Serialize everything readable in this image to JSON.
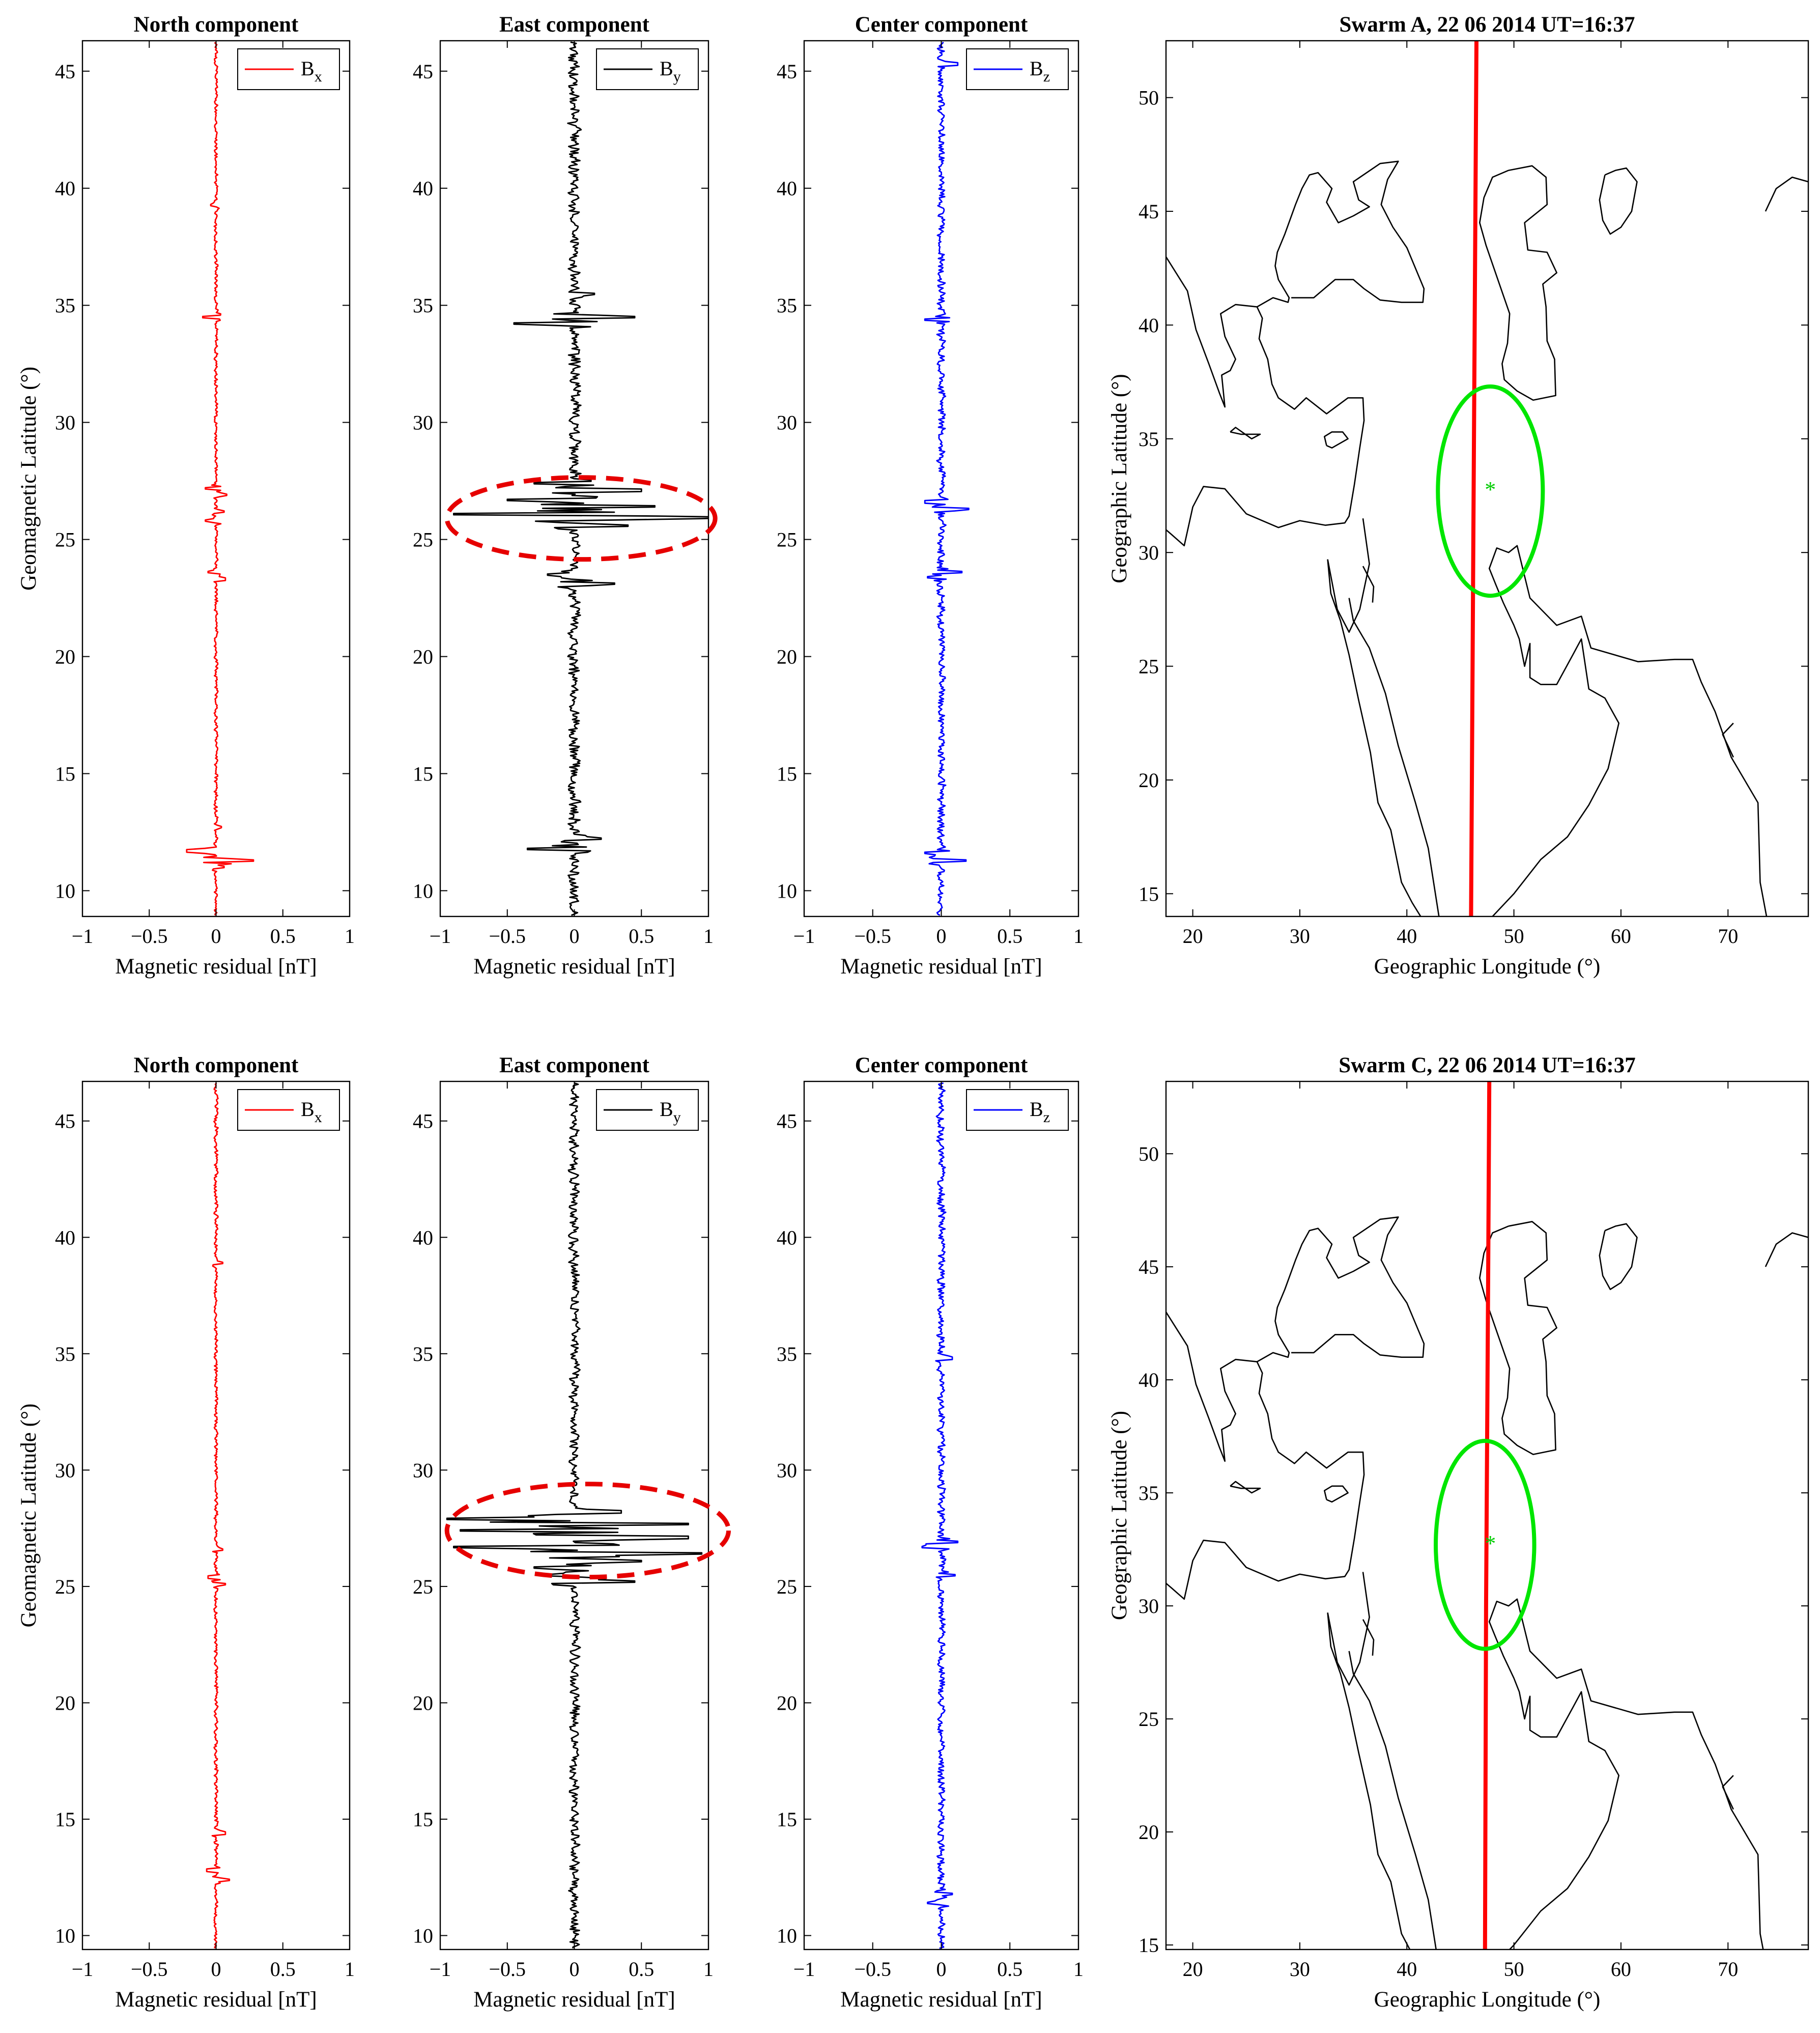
{
  "figure_description_free": true,
  "chart_data": [
    {
      "type": "line",
      "row": 0,
      "col": 0,
      "title": "North component",
      "xlabel": "Magnetic residual [nT]",
      "ylabel": "Geomagnetic Latitude (°)",
      "xlim": [
        -1,
        1
      ],
      "ylim": [
        8.9,
        46.3
      ],
      "xticks": [
        -1,
        -0.5,
        0,
        0.5,
        1
      ],
      "xtick_labels": [
        "−1",
        "−0.5",
        "0",
        "0.5",
        "1"
      ],
      "yticks": [
        10,
        15,
        20,
        25,
        30,
        35,
        40,
        45
      ],
      "legend": {
        "base": "B",
        "sub": "x",
        "placement": "top-right"
      },
      "color": "#ff0000",
      "seed": 11,
      "noise": 0.02,
      "spikes": [
        [
          11.3,
          0.28
        ],
        [
          11.7,
          -0.22
        ],
        [
          11.0,
          0.06
        ],
        [
          12.7,
          0.04
        ],
        [
          23.3,
          0.07
        ],
        [
          23.6,
          -0.06
        ],
        [
          25.8,
          -0.08
        ],
        [
          26.2,
          0.06
        ],
        [
          26.9,
          0.08
        ],
        [
          27.2,
          -0.08
        ],
        [
          34.5,
          -0.1
        ],
        [
          39.3,
          -0.04
        ]
      ],
      "series": [
        {
          "name": "Bx"
        }
      ]
    },
    {
      "type": "line",
      "row": 0,
      "col": 1,
      "title": "East component",
      "xlabel": "Magnetic residual [nT]",
      "ylabel": "",
      "xlim": [
        -1,
        1
      ],
      "ylim": [
        8.9,
        46.3
      ],
      "xticks": [
        -1,
        -0.5,
        0,
        0.5,
        1
      ],
      "xtick_labels": [
        "−1",
        "−0.5",
        "0",
        "0.5",
        "1"
      ],
      "yticks": [
        10,
        15,
        20,
        25,
        30,
        35,
        40,
        45
      ],
      "legend": {
        "base": "B",
        "sub": "y",
        "placement": "top-right"
      },
      "color": "#000000",
      "seed": 23,
      "noise": 0.07,
      "spikes": [
        [
          25.9,
          0.95
        ],
        [
          26.1,
          -0.9
        ],
        [
          26.4,
          0.6
        ],
        [
          26.7,
          -0.5
        ],
        [
          27.1,
          0.5
        ],
        [
          27.4,
          -0.3
        ],
        [
          25.6,
          0.4
        ],
        [
          23.1,
          0.3
        ],
        [
          23.5,
          -0.2
        ],
        [
          34.2,
          -0.45
        ],
        [
          34.5,
          0.45
        ],
        [
          11.8,
          -0.35
        ],
        [
          12.2,
          0.2
        ],
        [
          35.5,
          0.15
        ]
      ],
      "series": [
        {
          "name": "By"
        }
      ],
      "highlight": {
        "type": "ellipse",
        "center_x": 0.05,
        "center_y": 25.9,
        "rx": 1.0,
        "ry": 1.75,
        "color": "#e60000"
      }
    },
    {
      "type": "line",
      "row": 0,
      "col": 2,
      "title": "Center component",
      "xlabel": "Magnetic residual [nT]",
      "ylabel": "",
      "xlim": [
        -1,
        1
      ],
      "ylim": [
        8.9,
        46.3
      ],
      "xticks": [
        -1,
        -0.5,
        0,
        0.5,
        1
      ],
      "xtick_labels": [
        "−1",
        "−0.5",
        "0",
        "0.5",
        "1"
      ],
      "yticks": [
        10,
        15,
        20,
        25,
        30,
        35,
        40,
        45
      ],
      "legend": {
        "base": "B",
        "sub": "z",
        "placement": "top-right"
      },
      "color": "#0000ff",
      "seed": 37,
      "noise": 0.045,
      "spikes": [
        [
          26.3,
          0.2
        ],
        [
          26.6,
          -0.12
        ],
        [
          23.6,
          0.15
        ],
        [
          23.4,
          -0.1
        ],
        [
          34.4,
          -0.12
        ],
        [
          11.3,
          0.18
        ],
        [
          11.6,
          -0.12
        ],
        [
          45.3,
          0.12
        ]
      ],
      "series": [
        {
          "name": "Bz"
        }
      ]
    },
    {
      "type": "map",
      "row": 0,
      "col": 3,
      "title": "Swarm A, 22 06 2014 UT=16:37",
      "xlabel": "Geographic Longitude (°)",
      "ylabel": "Geographic  Latitude (°)",
      "xlim": [
        17.5,
        77.5
      ],
      "ylim": [
        14,
        52.5
      ],
      "xticks": [
        20,
        30,
        40,
        50,
        60,
        70
      ],
      "yticks": [
        15,
        20,
        25,
        30,
        35,
        40,
        45,
        50
      ],
      "track": {
        "color": "#ff0000",
        "points": [
          [
            46.0,
            14.0
          ],
          [
            46.2,
            30.0
          ],
          [
            46.4,
            45.0
          ],
          [
            46.5,
            52.5
          ]
        ]
      },
      "epicenter": {
        "lon": 47.8,
        "lat": 32.8,
        "marker": "*",
        "color": "#00cc00"
      },
      "circle": {
        "lon": 47.8,
        "lat": 32.7,
        "rx": 4.9,
        "ry": 4.6,
        "color": "#00e600"
      }
    },
    {
      "type": "line",
      "row": 1,
      "col": 0,
      "title": "North component",
      "xlabel": "Magnetic residual [nT]",
      "ylabel": "Geomagnetic Latitude (°)",
      "xlim": [
        -1,
        1
      ],
      "ylim": [
        9.4,
        46.7
      ],
      "xticks": [
        -1,
        -0.5,
        0,
        0.5,
        1
      ],
      "xtick_labels": [
        "−1",
        "−0.5",
        "0",
        "0.5",
        "1"
      ],
      "yticks": [
        10,
        15,
        20,
        25,
        30,
        35,
        40,
        45
      ],
      "legend": {
        "base": "B",
        "sub": "x",
        "placement": "top-right"
      },
      "color": "#ff0000",
      "seed": 53,
      "noise": 0.022,
      "spikes": [
        [
          12.4,
          0.1
        ],
        [
          12.8,
          -0.07
        ],
        [
          14.4,
          0.07
        ],
        [
          25.1,
          0.07
        ],
        [
          25.4,
          -0.06
        ],
        [
          26.6,
          0.05
        ],
        [
          38.9,
          0.05
        ]
      ],
      "series": [
        {
          "name": "Bx"
        }
      ]
    },
    {
      "type": "line",
      "row": 1,
      "col": 1,
      "title": "East component",
      "xlabel": "Magnetic residual [nT]",
      "ylabel": "",
      "xlim": [
        -1,
        1
      ],
      "ylim": [
        9.4,
        46.7
      ],
      "xticks": [
        -1,
        -0.5,
        0,
        0.5,
        1
      ],
      "xtick_labels": [
        "−1",
        "−0.5",
        "0",
        "0.5",
        "1"
      ],
      "yticks": [
        10,
        15,
        20,
        25,
        30,
        35,
        40,
        45
      ],
      "legend": {
        "base": "B",
        "sub": "y",
        "placement": "top-right"
      },
      "color": "#000000",
      "seed": 71,
      "noise": 0.06,
      "spikes": [
        [
          26.4,
          0.95
        ],
        [
          26.7,
          -0.9
        ],
        [
          27.1,
          0.85
        ],
        [
          27.4,
          -0.85
        ],
        [
          27.7,
          0.85
        ],
        [
          27.9,
          -0.95
        ],
        [
          26.1,
          0.5
        ],
        [
          25.8,
          -0.3
        ],
        [
          25.2,
          0.45
        ],
        [
          25.5,
          -0.2
        ],
        [
          28.2,
          0.35
        ]
      ],
      "series": [
        {
          "name": "By"
        }
      ],
      "highlight": {
        "type": "ellipse",
        "center_x": 0.1,
        "center_y": 27.4,
        "rx": 1.05,
        "ry": 2.0,
        "color": "#e60000"
      }
    },
    {
      "type": "line",
      "row": 1,
      "col": 2,
      "title": "Center component",
      "xlabel": "Magnetic residual [nT]",
      "ylabel": "",
      "xlim": [
        -1,
        1
      ],
      "ylim": [
        9.4,
        46.7
      ],
      "xticks": [
        -1,
        -0.5,
        0,
        0.5,
        1
      ],
      "xtick_labels": [
        "−1",
        "−0.5",
        "0",
        "0.5",
        "1"
      ],
      "yticks": [
        10,
        15,
        20,
        25,
        30,
        35,
        40,
        45
      ],
      "legend": {
        "base": "B",
        "sub": "z",
        "placement": "top-right"
      },
      "color": "#0000ff",
      "seed": 89,
      "noise": 0.045,
      "spikes": [
        [
          26.9,
          0.12
        ],
        [
          26.7,
          -0.14
        ],
        [
          25.5,
          0.1
        ],
        [
          11.4,
          -0.1
        ],
        [
          11.8,
          0.08
        ],
        [
          34.8,
          0.08
        ]
      ],
      "series": [
        {
          "name": "Bz"
        }
      ]
    },
    {
      "type": "map",
      "row": 1,
      "col": 3,
      "title": "Swarm C, 22 06 2014 UT=16:37",
      "xlabel": "Geographic Longitude (°)",
      "ylabel": "Geographic Latitude (°)",
      "xlim": [
        17.5,
        77.5
      ],
      "ylim": [
        14.8,
        53.2
      ],
      "xticks": [
        20,
        30,
        40,
        50,
        60,
        70
      ],
      "yticks": [
        15,
        20,
        25,
        30,
        35,
        40,
        45,
        50
      ],
      "track": {
        "color": "#ff0000",
        "points": [
          [
            47.3,
            14.8
          ],
          [
            47.4,
            30.0
          ],
          [
            47.6,
            45.0
          ],
          [
            47.7,
            53.2
          ]
        ]
      },
      "epicenter": {
        "lon": 47.8,
        "lat": 32.8,
        "marker": "*",
        "color": "#00cc00"
      },
      "circle": {
        "lon": 47.3,
        "lat": 32.7,
        "rx": 4.6,
        "ry": 4.6,
        "color": "#00e600"
      }
    }
  ],
  "coastlines": [
    [
      [
        17.5,
        43.0
      ],
      [
        19.5,
        41.5
      ],
      [
        20.3,
        39.8
      ],
      [
        21.5,
        38.3
      ],
      [
        22.5,
        37.0
      ],
      [
        23.0,
        36.4
      ],
      [
        22.7,
        37.8
      ],
      [
        23.5,
        38.0
      ],
      [
        24.0,
        38.5
      ],
      [
        23.0,
        39.5
      ],
      [
        22.6,
        40.5
      ],
      [
        24.0,
        40.9
      ],
      [
        26.0,
        40.8
      ],
      [
        26.5,
        40.3
      ],
      [
        26.2,
        39.4
      ],
      [
        27.0,
        38.5
      ],
      [
        27.4,
        37.4
      ],
      [
        28.0,
        36.8
      ],
      [
        29.5,
        36.3
      ],
      [
        30.6,
        36.8
      ],
      [
        32.5,
        36.1
      ],
      [
        34.5,
        36.8
      ],
      [
        35.9,
        36.8
      ],
      [
        36.0,
        35.8
      ],
      [
        35.6,
        34.6
      ],
      [
        35.1,
        33.0
      ],
      [
        34.6,
        31.6
      ],
      [
        34.2,
        31.3
      ],
      [
        32.4,
        31.2
      ],
      [
        30.0,
        31.4
      ],
      [
        28.0,
        31.1
      ],
      [
        25.0,
        31.7
      ],
      [
        23.0,
        32.8
      ],
      [
        21.0,
        32.9
      ],
      [
        20.0,
        32.0
      ],
      [
        19.2,
        30.3
      ],
      [
        18.0,
        30.8
      ],
      [
        17.5,
        31.0
      ]
    ],
    [
      [
        26.0,
        40.8
      ],
      [
        27.5,
        41.2
      ],
      [
        28.9,
        41.0
      ],
      [
        29.0,
        41.2
      ],
      [
        28.0,
        42.0
      ],
      [
        27.7,
        42.6
      ],
      [
        27.9,
        43.2
      ],
      [
        28.6,
        44.0
      ],
      [
        29.6,
        45.3
      ],
      [
        30.2,
        46.0
      ],
      [
        30.9,
        46.6
      ],
      [
        31.7,
        46.7
      ],
      [
        33.0,
        46.0
      ],
      [
        32.5,
        45.4
      ],
      [
        33.6,
        44.5
      ],
      [
        35.0,
        44.8
      ],
      [
        36.5,
        45.2
      ],
      [
        35.5,
        45.5
      ],
      [
        35.0,
        46.3
      ],
      [
        37.5,
        47.1
      ],
      [
        39.2,
        47.2
      ],
      [
        38.2,
        46.4
      ],
      [
        37.6,
        45.3
      ],
      [
        38.7,
        44.3
      ],
      [
        40.0,
        43.4
      ],
      [
        41.6,
        41.6
      ],
      [
        41.5,
        41.0
      ],
      [
        39.5,
        41.0
      ],
      [
        37.5,
        41.1
      ],
      [
        36.0,
        41.6
      ],
      [
        35.0,
        42.0
      ],
      [
        33.3,
        42.0
      ],
      [
        31.3,
        41.2
      ],
      [
        29.2,
        41.2
      ]
    ],
    [
      [
        49.5,
        46.8
      ],
      [
        48.0,
        46.5
      ],
      [
        47.2,
        45.6
      ],
      [
        46.8,
        44.5
      ],
      [
        47.4,
        43.5
      ],
      [
        48.5,
        42.0
      ],
      [
        49.6,
        40.5
      ],
      [
        49.4,
        39.2
      ],
      [
        48.9,
        38.3
      ],
      [
        49.1,
        37.6
      ],
      [
        50.3,
        37.1
      ],
      [
        51.8,
        36.7
      ],
      [
        53.9,
        36.9
      ],
      [
        53.8,
        38.5
      ],
      [
        53.1,
        39.3
      ],
      [
        53.0,
        40.8
      ],
      [
        52.7,
        41.8
      ],
      [
        54.0,
        42.3
      ],
      [
        53.1,
        43.2
      ],
      [
        51.3,
        43.3
      ],
      [
        51.0,
        44.5
      ],
      [
        53.1,
        45.3
      ],
      [
        53.0,
        46.5
      ],
      [
        51.7,
        47.0
      ],
      [
        49.5,
        46.8
      ]
    ],
    [
      [
        58.5,
        46.6
      ],
      [
        58.0,
        45.5
      ],
      [
        58.3,
        44.6
      ],
      [
        59.0,
        44.0
      ],
      [
        60.0,
        44.3
      ],
      [
        61.0,
        45.0
      ],
      [
        61.5,
        46.3
      ],
      [
        60.5,
        46.9
      ],
      [
        59.5,
        46.8
      ],
      [
        58.5,
        46.6
      ]
    ],
    [
      [
        32.5,
        34.7
      ],
      [
        33.0,
        34.6
      ],
      [
        34.5,
        35.0
      ],
      [
        34.0,
        35.3
      ],
      [
        33.0,
        35.3
      ],
      [
        32.3,
        35.1
      ],
      [
        32.5,
        34.7
      ]
    ],
    [
      [
        23.5,
        35.3
      ],
      [
        24.5,
        35.2
      ],
      [
        26.3,
        35.2
      ],
      [
        25.5,
        35.0
      ],
      [
        24.0,
        35.5
      ],
      [
        23.5,
        35.3
      ]
    ],
    [
      [
        35.9,
        31.5
      ],
      [
        36.5,
        29.5
      ],
      [
        35.6,
        27.5
      ],
      [
        34.6,
        26.5
      ],
      [
        33.5,
        27.5
      ],
      [
        32.6,
        29.7
      ]
    ],
    [
      [
        35.9,
        29.4
      ],
      [
        36.9,
        28.5
      ],
      [
        36.8,
        27.8
      ]
    ],
    [
      [
        32.6,
        29.7
      ],
      [
        32.9,
        28.2
      ],
      [
        33.8,
        27.0
      ],
      [
        34.6,
        25.5
      ],
      [
        35.5,
        23.5
      ],
      [
        36.6,
        21.2
      ],
      [
        37.3,
        19.0
      ],
      [
        38.5,
        17.8
      ],
      [
        39.5,
        15.5
      ],
      [
        40.5,
        14.6
      ],
      [
        43.0,
        12.7
      ]
    ],
    [
      [
        34.6,
        28.0
      ],
      [
        35.0,
        27.0
      ],
      [
        36.5,
        25.8
      ],
      [
        38.0,
        23.8
      ],
      [
        39.2,
        21.5
      ],
      [
        40.8,
        19.0
      ],
      [
        42.0,
        17.0
      ],
      [
        43.0,
        14.0
      ],
      [
        43.5,
        12.8
      ]
    ],
    [
      [
        45.5,
        13.0
      ],
      [
        48.0,
        14.0
      ],
      [
        50.0,
        15.0
      ],
      [
        52.5,
        16.5
      ],
      [
        55.0,
        17.5
      ],
      [
        57.0,
        18.9
      ],
      [
        58.8,
        20.5
      ],
      [
        59.8,
        22.5
      ],
      [
        58.5,
        23.6
      ],
      [
        57.0,
        24.0
      ],
      [
        56.3,
        26.2
      ],
      [
        55.5,
        25.5
      ],
      [
        54.0,
        24.2
      ],
      [
        52.5,
        24.2
      ],
      [
        51.5,
        24.5
      ],
      [
        51.5,
        26.0
      ],
      [
        51.0,
        25.0
      ],
      [
        50.5,
        26.2
      ],
      [
        50.0,
        26.8
      ],
      [
        49.0,
        27.8
      ],
      [
        48.3,
        28.6
      ],
      [
        47.7,
        29.3
      ],
      [
        48.4,
        30.2
      ],
      [
        49.5,
        30.0
      ],
      [
        50.3,
        30.3
      ],
      [
        51.5,
        28.0
      ],
      [
        54.0,
        26.8
      ],
      [
        56.3,
        27.2
      ],
      [
        57.2,
        25.8
      ],
      [
        61.6,
        25.2
      ],
      [
        65.0,
        25.3
      ],
      [
        66.7,
        25.3
      ],
      [
        67.5,
        24.3
      ],
      [
        68.8,
        23.0
      ],
      [
        70.3,
        21.0
      ],
      [
        72.8,
        19.0
      ],
      [
        73.0,
        15.5
      ],
      [
        74.0,
        13.0
      ]
    ],
    [
      [
        70.5,
        22.5
      ],
      [
        69.5,
        22.0
      ],
      [
        70.5,
        21.0
      ]
    ],
    [
      [
        73.5,
        45.0
      ],
      [
        74.5,
        46.0
      ],
      [
        76.0,
        46.5
      ],
      [
        77.5,
        46.3
      ]
    ]
  ]
}
